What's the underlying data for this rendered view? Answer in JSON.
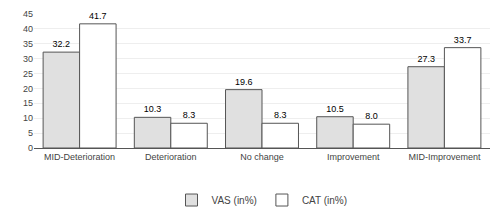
{
  "chart_data": {
    "type": "bar",
    "categories": [
      "MID-Deterioration",
      "Deterioration",
      "No change",
      "Improvement",
      "MID-Improvement"
    ],
    "series": [
      {
        "name": "VAS (in%)",
        "color": "#e0e0e0",
        "values": [
          32.2,
          10.3,
          19.6,
          10.5,
          27.3
        ],
        "value_labels": [
          "32.2",
          "10.3",
          "19.6",
          "10.5",
          "27.3"
        ]
      },
      {
        "name": "CAT (in%)",
        "color": "#ffffff",
        "values": [
          41.7,
          8.3,
          8.3,
          8.0,
          33.7
        ],
        "value_labels": [
          "41.7",
          "8.3",
          "8.3",
          "8.0",
          "33.7"
        ]
      }
    ],
    "ylim": [
      0,
      45
    ],
    "yticks": [
      0,
      5,
      10,
      15,
      20,
      25,
      30,
      35,
      40,
      45
    ],
    "grid": true,
    "legend": "bottom",
    "data_labels": true
  }
}
